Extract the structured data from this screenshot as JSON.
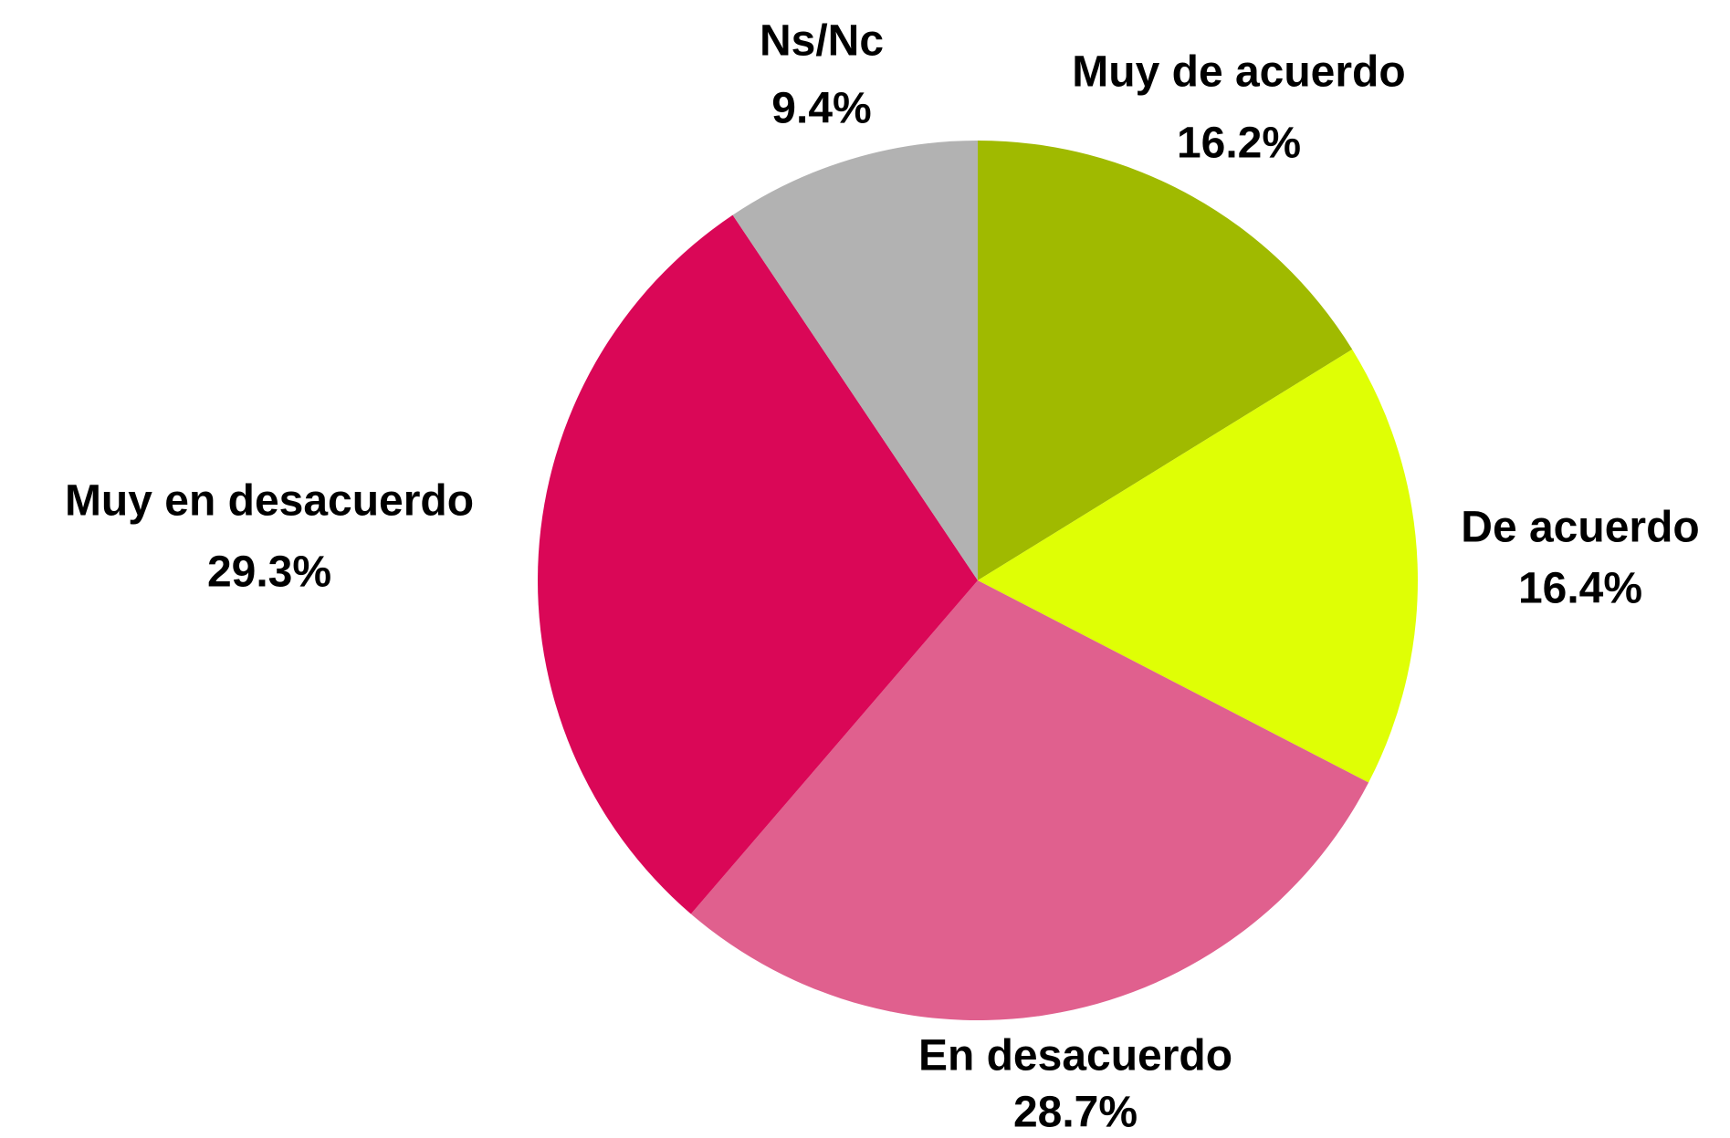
{
  "chart_data": {
    "type": "pie",
    "categories": [
      "Muy de acuerdo",
      "De acuerdo",
      "En desacuerdo",
      "Muy en desacuerdo",
      "Ns/Nc"
    ],
    "values": [
      16.2,
      16.4,
      28.7,
      29.3,
      9.4
    ],
    "value_labels": [
      "16.2%",
      "16.4%",
      "28.7%",
      "29.3%",
      "9.4%"
    ],
    "colors": [
      "#a0ba00",
      "#dfff05",
      "#e0608e",
      "#da0757",
      "#b2b2b2"
    ]
  }
}
